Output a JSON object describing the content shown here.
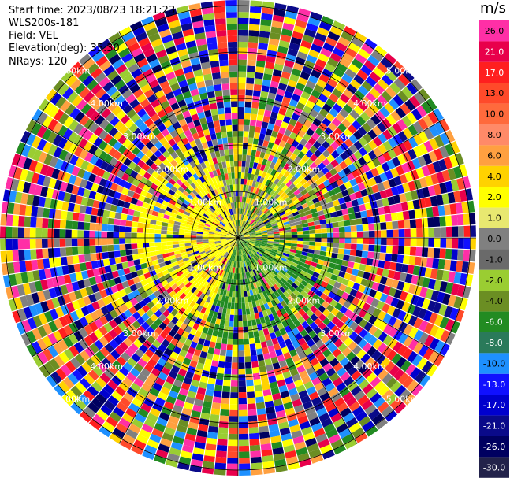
{
  "header": {
    "start_time": "Start time: 2023/08/23 18:21:23",
    "instrument": "WLS200s-181",
    "field": "Field: VEL",
    "elevation": "Elevation(deg): 35.30",
    "nrays": "NRays: 120"
  },
  "colorbar": {
    "unit": "m/s",
    "labels": [
      "26.0",
      "21.0",
      "17.0",
      "13.0",
      "10.0",
      "8.0",
      "6.0",
      "4.0",
      "2.0",
      "1.0",
      "0.0",
      "-1.0",
      "-2.0",
      "-4.0",
      "-6.0",
      "-8.0",
      "-10.0",
      "-13.0",
      "-17.0",
      "-21.0",
      "-26.0",
      "-30.0"
    ],
    "colors": [
      "#ff2fa6",
      "#e8004b",
      "#ff1f1f",
      "#ff4a2a",
      "#ff6a3c",
      "#ff8a68",
      "#ffa040",
      "#ffd200",
      "#ffff00",
      "#e8e870",
      "#808080",
      "#6a6a6a",
      "#9acd32",
      "#6b8e23",
      "#228b22",
      "#2a7a5a",
      "#1e90ff",
      "#1010ff",
      "#0000cd",
      "#0a0a8a",
      "#000060",
      "#22224a"
    ]
  },
  "ppi": {
    "range_labels": [
      "1.00km",
      "2.00km",
      "3.00km",
      "4.00km",
      "5.00km"
    ],
    "inner_palette_near": [
      "#808080",
      "#6b8e23",
      "#9acd32",
      "#ffff00",
      "#ffd200",
      "#228b22"
    ],
    "noise_palette": [
      "#ff2fa6",
      "#e8004b",
      "#ff1f1f",
      "#ffa040",
      "#ffff00",
      "#9acd32",
      "#6b8e23",
      "#228b22",
      "#1e90ff",
      "#1010ff",
      "#0000cd",
      "#000060",
      "#808080",
      "#ff4a2a",
      "#ffd200",
      "#0a0a8a"
    ]
  }
}
